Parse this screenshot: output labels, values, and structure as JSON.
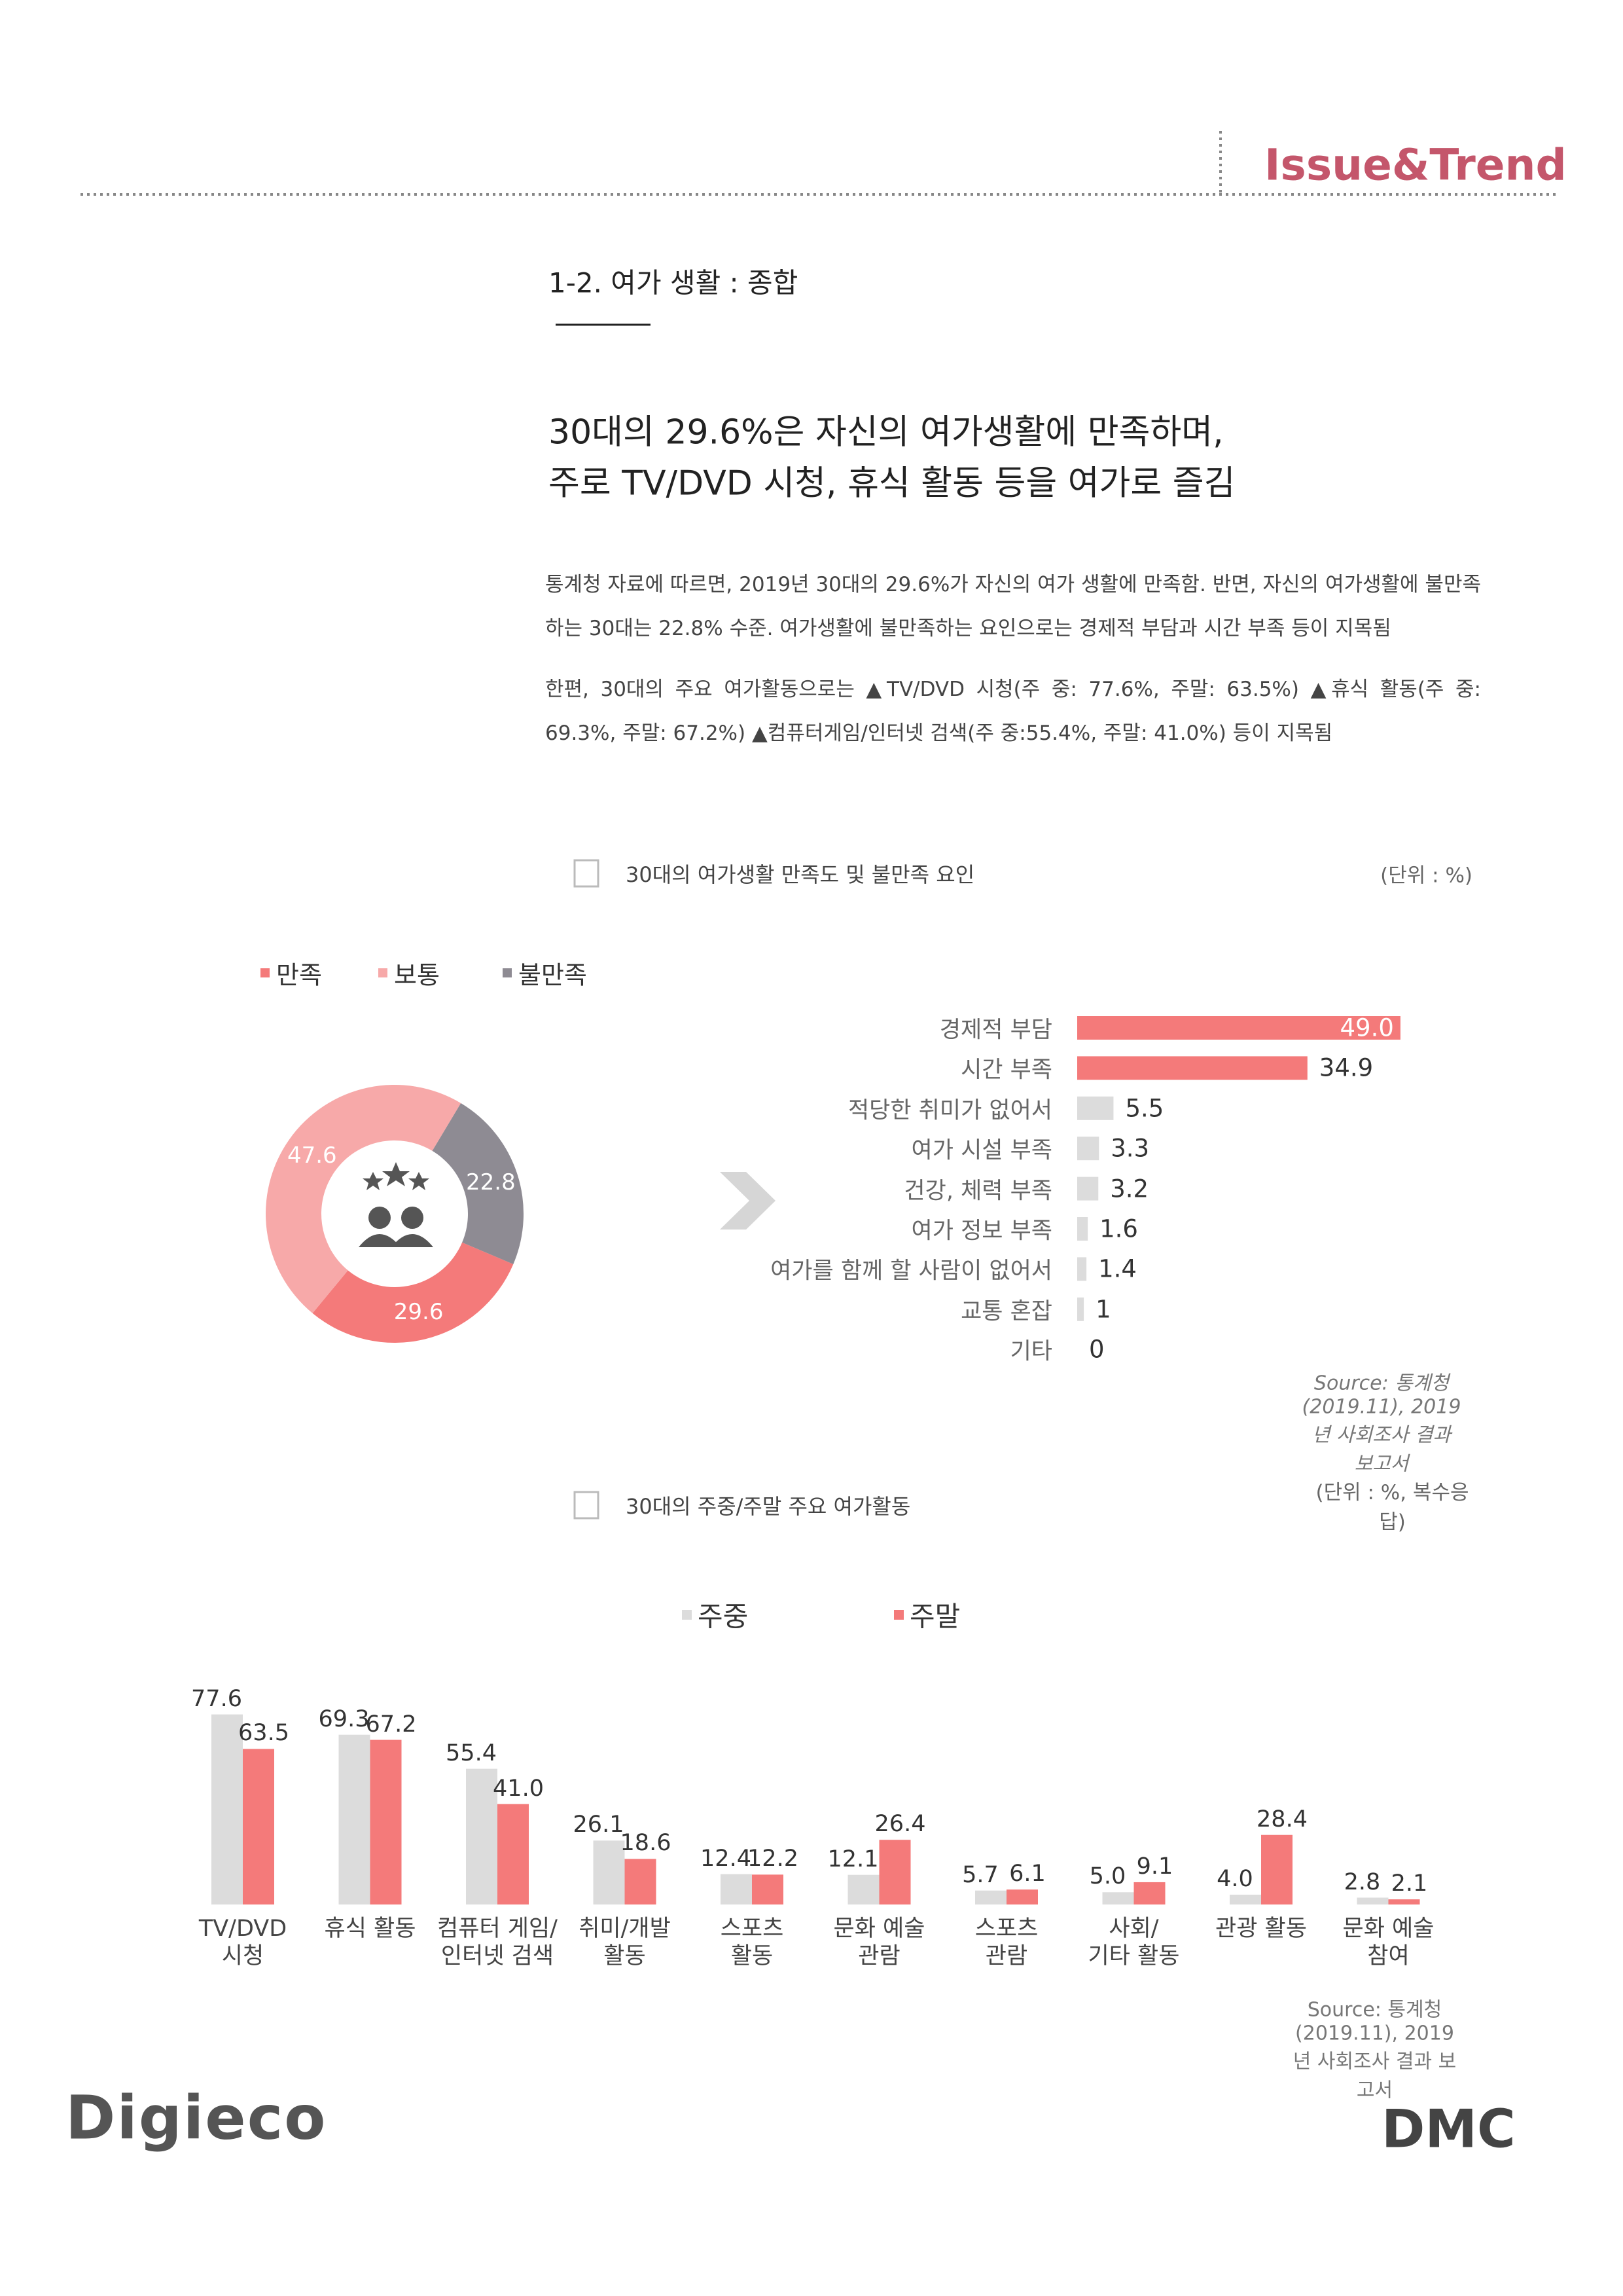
{
  "header": {
    "brand": "Issue&Trend"
  },
  "section_title": "1-2. 여가 생활 : 종합",
  "headline": [
    "30대의 29.6%은 자신의 여가생활에 만족하며,",
    "주로 TV/DVD 시청, 휴식 활동 등을 여가로 즐김"
  ],
  "body": [
    "통계청 자료에 따르면, 2019년 30대의 29.6%가 자신의 여가 생활에 만족함. 반면, 자신의 여가생활에 불만족하는 30대는 22.8% 수준. 여가생활에 불만족하는 요인으로는 경제적 부담과 시간 부족 등이 지목됨",
    "한편, 30대의 주요 여가활동으로는 ▲TV/DVD 시청(주 중: 77.6%, 주말: 63.5%) ▲휴식 활동(주 중: 69.3%, 주말: 67.2%) ▲컴퓨터게임/인터넷 검색(주 중:55.4%, 주말: 41.0%) 등이 지목됨"
  ],
  "chart_data": [
    {
      "type": "pie",
      "donut": true,
      "title": "30대의 여가생활 만족도 및 불만족 요인",
      "unit": "(단위 : %)",
      "categories": [
        "만족",
        "보통",
        "불만족"
      ],
      "values": [
        29.6,
        47.6,
        22.8
      ],
      "colors": [
        "#f47a7a",
        "#f7a9a9",
        "#8e8b93"
      ],
      "legend": "top-left"
    },
    {
      "type": "bar",
      "orientation": "horizontal",
      "categories": [
        "경제적 부담",
        "시간 부족",
        "적당한 취미가 없어서",
        "여가 시설 부족",
        "건강, 체력 부족",
        "여가 정보 부족",
        "여가를 함께 할 사람이 없어서",
        "교통 혼잡",
        "기타"
      ],
      "values": [
        49.0,
        34.9,
        5.5,
        3.3,
        3.2,
        1.6,
        1.4,
        1,
        0
      ],
      "value_labels": [
        "49.0",
        "34.9",
        "5.5",
        "3.3",
        "3.2",
        "1.6",
        "1.4",
        "1",
        "0"
      ],
      "colors": [
        "#f47a7a",
        "#f47a7a",
        "#dcdcdc",
        "#dcdcdc",
        "#dcdcdc",
        "#dcdcdc",
        "#dcdcdc",
        "#dcdcdc",
        "#dcdcdc"
      ],
      "source": "Source: 통계청(2019.11), 2019년 사회조사 결과 보고서"
    },
    {
      "type": "bar",
      "title": "30대의 주중/주말 주요 여가활동",
      "unit": "(단위 : %, 복수응답)",
      "categories": [
        "TV/DVD\n시청",
        "휴식 활동",
        "컴퓨터 게임/\n인터넷 검색",
        "취미/개발\n활동",
        "스포츠\n활동",
        "문화 예술\n관람",
        "스포츠\n관람",
        "사회/\n기타 활동",
        "관광 활동",
        "문화 예술\n참여"
      ],
      "series": [
        {
          "name": "주중",
          "color": "#dcdcdc",
          "values": [
            77.6,
            69.3,
            55.4,
            26.1,
            12.4,
            12.1,
            5.7,
            5.0,
            4.0,
            2.8
          ],
          "value_labels": [
            "77.6",
            "69.3",
            "55.4",
            "26.1",
            "12.4",
            "12.1",
            "5.7",
            "5.0",
            "4.0",
            "2.8"
          ]
        },
        {
          "name": "주말",
          "color": "#f47a7a",
          "values": [
            63.5,
            67.2,
            41.0,
            18.6,
            12.2,
            26.4,
            6.1,
            9.1,
            28.4,
            2.1
          ],
          "value_labels": [
            "63.5",
            "67.2",
            "41.0",
            "18.6",
            "12.2",
            "26.4",
            "6.1",
            "9.1",
            "28.4",
            "2.1"
          ]
        }
      ],
      "legend": "top",
      "source": "Source: 통계청(2019.11), 2019년 사회조사 결과 보고서"
    }
  ],
  "footer": {
    "left_logo": "Digieco",
    "right_logo": "DMC"
  }
}
